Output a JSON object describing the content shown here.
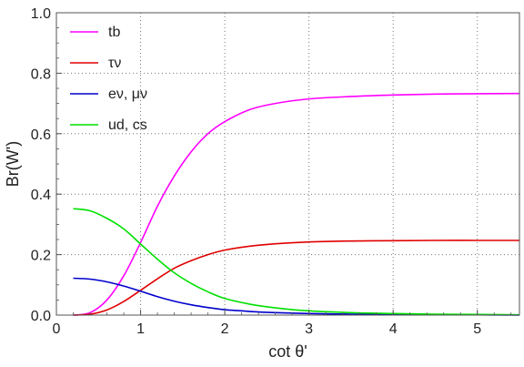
{
  "chart_data": {
    "type": "line",
    "xlabel": "cot θ'",
    "ylabel": "Br(W')",
    "xlim": [
      0,
      5.5
    ],
    "ylim": [
      0,
      1.0
    ],
    "x_ticks": [
      "0",
      "1",
      "2",
      "3",
      "4",
      "5"
    ],
    "y_ticks": [
      "0.0",
      "0.2",
      "0.4",
      "0.6",
      "0.8",
      "1.0"
    ],
    "grid": "dotted",
    "legend_position": "top-left",
    "x": [
      0.2,
      0.4,
      0.6,
      0.8,
      1.0,
      1.2,
      1.4,
      1.6,
      1.8,
      2.0,
      2.3,
      2.6,
      3.0,
      3.5,
      4.0,
      4.5,
      5.0,
      5.5
    ],
    "series": [
      {
        "name": "tb",
        "color": "#ff00ff",
        "values": [
          0.0,
          0.008,
          0.05,
          0.13,
          0.24,
          0.36,
          0.46,
          0.54,
          0.6,
          0.64,
          0.68,
          0.7,
          0.715,
          0.723,
          0.728,
          0.731,
          0.732,
          0.733
        ]
      },
      {
        "name": "τν",
        "color": "#e00000",
        "values": [
          0.0,
          0.003,
          0.017,
          0.045,
          0.082,
          0.12,
          0.155,
          0.18,
          0.2,
          0.215,
          0.228,
          0.236,
          0.242,
          0.245,
          0.246,
          0.247,
          0.247,
          0.247
        ]
      },
      {
        "name": "eν, μν",
        "color": "#0000cc",
        "values": [
          0.122,
          0.119,
          0.11,
          0.096,
          0.079,
          0.061,
          0.046,
          0.034,
          0.025,
          0.018,
          0.012,
          0.008,
          0.005,
          0.003,
          0.002,
          0.001,
          0.001,
          0.0
        ]
      },
      {
        "name": "ud, cs",
        "color": "#00e000",
        "values": [
          0.352,
          0.345,
          0.32,
          0.285,
          0.235,
          0.185,
          0.14,
          0.105,
          0.077,
          0.055,
          0.036,
          0.024,
          0.014,
          0.008,
          0.005,
          0.003,
          0.002,
          0.001
        ]
      }
    ]
  }
}
